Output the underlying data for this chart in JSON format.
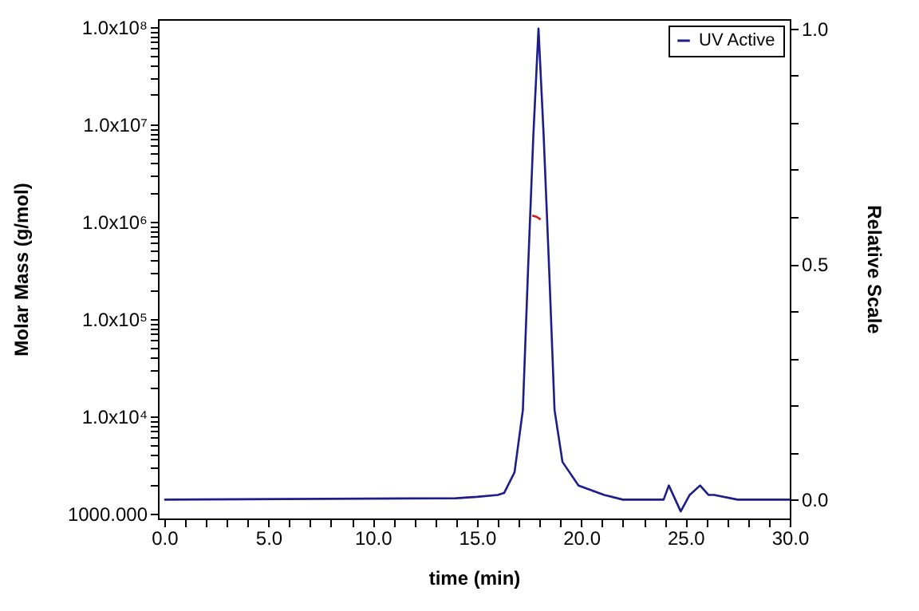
{
  "chart_data": {
    "type": "line",
    "xlabel": "time (min)",
    "ylabel": "Molar Mass (g/mol)",
    "y2label": "Relative Scale",
    "xlim": [
      -0.3,
      30.0
    ],
    "xticks": [
      {
        "value": 0,
        "label": "0.0"
      },
      {
        "value": 1,
        "label": null
      },
      {
        "value": 2,
        "label": null
      },
      {
        "value": 3,
        "label": null
      },
      {
        "value": 4,
        "label": null
      },
      {
        "value": 5,
        "label": "5.0"
      },
      {
        "value": 6,
        "label": null
      },
      {
        "value": 7,
        "label": null
      },
      {
        "value": 8,
        "label": null
      },
      {
        "value": 9,
        "label": null
      },
      {
        "value": 10,
        "label": "10.0"
      },
      {
        "value": 11,
        "label": null
      },
      {
        "value": 12,
        "label": null
      },
      {
        "value": 13,
        "label": null
      },
      {
        "value": 14,
        "label": null
      },
      {
        "value": 15,
        "label": "15.0"
      },
      {
        "value": 16,
        "label": null
      },
      {
        "value": 17,
        "label": null
      },
      {
        "value": 18,
        "label": null
      },
      {
        "value": 19,
        "label": null
      },
      {
        "value": 20,
        "label": "20.0"
      },
      {
        "value": 21,
        "label": null
      },
      {
        "value": 22,
        "label": null
      },
      {
        "value": 23,
        "label": null
      },
      {
        "value": 24,
        "label": null
      },
      {
        "value": 25,
        "label": "25.0"
      },
      {
        "value": 26,
        "label": null
      },
      {
        "value": 27,
        "label": null
      },
      {
        "value": 28,
        "label": null
      },
      {
        "value": 29,
        "label": null
      },
      {
        "value": 30,
        "label": "30.0"
      }
    ],
    "log": "y",
    "ylim": [
      891,
      120000000
    ],
    "yticks": [
      {
        "value": 1000,
        "label": "1000.000"
      },
      {
        "value": 2000,
        "label": null
      },
      {
        "value": 3000,
        "label": null
      },
      {
        "value": 4000,
        "label": null
      },
      {
        "value": 5000,
        "label": null
      },
      {
        "value": 6000,
        "label": null
      },
      {
        "value": 7000,
        "label": null
      },
      {
        "value": 8000,
        "label": null
      },
      {
        "value": 9000,
        "label": null
      },
      {
        "value": 10000,
        "label": "1.0x10⁴"
      },
      {
        "value": 20000,
        "label": null
      },
      {
        "value": 30000,
        "label": null
      },
      {
        "value": 40000,
        "label": null
      },
      {
        "value": 50000,
        "label": null
      },
      {
        "value": 60000,
        "label": null
      },
      {
        "value": 70000,
        "label": null
      },
      {
        "value": 80000,
        "label": null
      },
      {
        "value": 90000,
        "label": null
      },
      {
        "value": 100000,
        "label": "1.0x10⁵"
      },
      {
        "value": 200000,
        "label": null
      },
      {
        "value": 300000,
        "label": null
      },
      {
        "value": 400000,
        "label": null
      },
      {
        "value": 500000,
        "label": null
      },
      {
        "value": 600000,
        "label": null
      },
      {
        "value": 700000,
        "label": null
      },
      {
        "value": 800000,
        "label": null
      },
      {
        "value": 900000,
        "label": null
      },
      {
        "value": 1000000,
        "label": "1.0x10⁶"
      },
      {
        "value": 2000000,
        "label": null
      },
      {
        "value": 3000000,
        "label": null
      },
      {
        "value": 4000000,
        "label": null
      },
      {
        "value": 5000000,
        "label": null
      },
      {
        "value": 6000000,
        "label": null
      },
      {
        "value": 7000000,
        "label": null
      },
      {
        "value": 8000000,
        "label": null
      },
      {
        "value": 9000000,
        "label": null
      },
      {
        "value": 10000000,
        "label": "1.0x10⁷"
      },
      {
        "value": 20000000,
        "label": null
      },
      {
        "value": 30000000,
        "label": null
      },
      {
        "value": 40000000,
        "label": null
      },
      {
        "value": 50000000,
        "label": null
      },
      {
        "value": 60000000,
        "label": null
      },
      {
        "value": 70000000,
        "label": null
      },
      {
        "value": 80000000,
        "label": null
      },
      {
        "value": 90000000,
        "label": null
      },
      {
        "value": 100000000,
        "label": "1.0x10⁸"
      }
    ],
    "y2lim": [
      -0.04,
      1.02
    ],
    "y2ticks": [
      {
        "value": 0,
        "label": "0.0"
      },
      {
        "value": 0.1,
        "label": null
      },
      {
        "value": 0.2,
        "label": null
      },
      {
        "value": 0.3,
        "label": null
      },
      {
        "value": 0.4,
        "label": null
      },
      {
        "value": 0.5,
        "label": "0.5"
      },
      {
        "value": 0.6,
        "label": null
      },
      {
        "value": 0.7,
        "label": null
      },
      {
        "value": 0.8,
        "label": null
      },
      {
        "value": 0.9,
        "label": null
      },
      {
        "value": 1,
        "label": "1.0"
      }
    ],
    "grid": false,
    "legend": "top right",
    "marker": "none",
    "line_style": "solid",
    "series": [
      {
        "name": "UV Active",
        "color": "#1c1c8a",
        "axis": "y2",
        "x": [
          0,
          14,
          15,
          16,
          16.3,
          16.8,
          17.2,
          17.45,
          17.7,
          17.95,
          18.2,
          18.46,
          18.72,
          19.1,
          19.87,
          21.1,
          22,
          23.95,
          24.2,
          24.77,
          25.2,
          25.7,
          26.1,
          26.37,
          27.5,
          30
        ],
        "values": [
          0,
          0.003,
          0.006,
          0.01,
          0.014,
          0.058,
          0.19,
          0.49,
          0.77,
          1.0,
          0.77,
          0.49,
          0.19,
          0.08,
          0.03,
          0.01,
          0.0,
          0.0,
          0.03,
          -0.025,
          0.01,
          0.03,
          0.01,
          0.01,
          0.0,
          0.0
        ]
      },
      {
        "color": "#e01010",
        "axis": "y",
        "x": [
          17.65,
          17.85,
          18.05
        ],
        "values": [
          1150000,
          1120000,
          1050000
        ]
      }
    ]
  }
}
